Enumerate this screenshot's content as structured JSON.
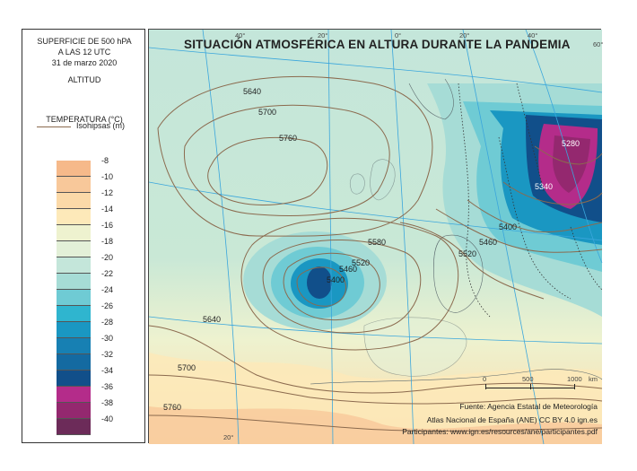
{
  "title": "SITUACIÓN ATMOSFÉRICA EN ALTURA DURANTE LA PANDEMIA",
  "legend": {
    "line1": "SUPERFICIE DE 500 hPA",
    "line2": "A LAS 12 UTC",
    "date": "31 de marzo 2020",
    "altitud": "ALTITUD",
    "isohipsas": "Isohipsas (m)",
    "temperatura": "TEMPERATURA (°C)",
    "scale": [
      {
        "label": "-8",
        "color": "#f6b98a"
      },
      {
        "label": "-10",
        "color": "#f8c89a"
      },
      {
        "label": "-12",
        "color": "#fbd9a8"
      },
      {
        "label": "-14",
        "color": "#fde9b9"
      },
      {
        "label": "-16",
        "color": "#eef2cf"
      },
      {
        "label": "-18",
        "color": "#e3f0d8"
      },
      {
        "label": "-20",
        "color": "#c4e6da"
      },
      {
        "label": "-22",
        "color": "#a6dcd6"
      },
      {
        "label": "-24",
        "color": "#6fcbd4"
      },
      {
        "label": "-26",
        "color": "#2fb5cf"
      },
      {
        "label": "-28",
        "color": "#1a97c2"
      },
      {
        "label": "-30",
        "color": "#1780b3"
      },
      {
        "label": "-32",
        "color": "#146aa1"
      },
      {
        "label": "-34",
        "color": "#114f8a"
      },
      {
        "label": "-36",
        "color": "#b42c8a"
      },
      {
        "label": "-38",
        "color": "#94286f"
      },
      {
        "label": "-40",
        "color": "#6c2b59"
      }
    ]
  },
  "map": {
    "coords": [
      "40°",
      "20°",
      "0°",
      "20°",
      "40°",
      "60°",
      "20°"
    ],
    "isohypses": [
      "5640",
      "5700",
      "5760",
      "5580",
      "5520",
      "5460",
      "5400",
      "5520",
      "5460",
      "5400",
      "5340",
      "5280",
      "5640",
      "5700",
      "5760"
    ],
    "scale_bar": {
      "labels": [
        "0",
        "500",
        "1000"
      ],
      "unit": "km"
    }
  },
  "credits": {
    "fuente": "Fuente: Agencia Estatal de Meteorología",
    "atlas": "Atlas Nacional de España (ANE) CC BY 4.0 ign.es",
    "participantes": "Participantes: www.ign.es/resources/ane/participantes.pdf"
  }
}
